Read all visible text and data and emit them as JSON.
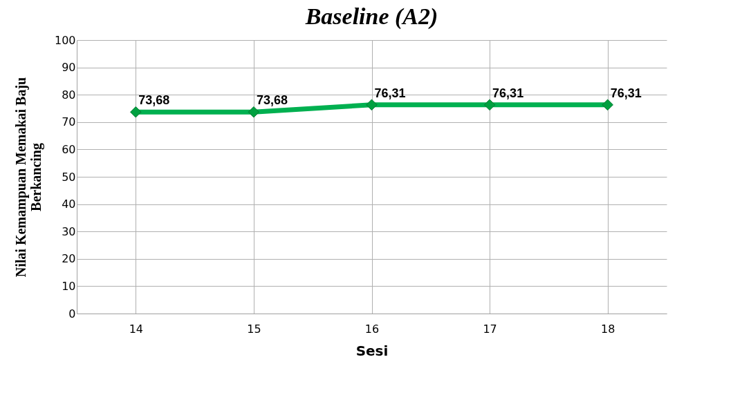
{
  "chart_data": {
    "type": "line",
    "title": "Baseline (A2)",
    "xlabel": "Sesi",
    "ylabel": "Nilai Kemampuan Memakai Baju Berkancing",
    "categories": [
      "14",
      "15",
      "16",
      "17",
      "18"
    ],
    "series": [
      {
        "color": "#00b050",
        "values": [
          73.68,
          73.68,
          76.31,
          76.31,
          76.31
        ],
        "value_labels": [
          "73,68",
          "73,68",
          "76,31",
          "76,31",
          "76,31"
        ]
      }
    ],
    "ylim": [
      0,
      100
    ],
    "yticks": [
      0,
      10,
      20,
      30,
      40,
      50,
      60,
      70,
      80,
      90,
      100
    ],
    "grid": true,
    "marker": "diamond",
    "data_labels": true
  }
}
